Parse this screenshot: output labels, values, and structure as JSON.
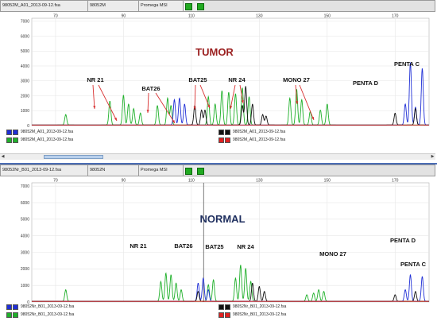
{
  "colors": {
    "blue": "#1f2fd6",
    "green": "#1fb02a",
    "black": "#111111",
    "red": "#e02020",
    "tumor_label": "#9b2020",
    "normal_label": "#1f2f5f",
    "annotation": "#111111",
    "arrow": "#d83030"
  },
  "icons": [
    "green-square-icon",
    "green-square-icon"
  ],
  "panels": [
    {
      "header": {
        "file": "98052M_A01_2013-09-12.fsa",
        "sample": "98052M",
        "kit": "Promega MSI"
      },
      "label": "TUMOR",
      "legend": [
        {
          "text": "98052M_A01_2013-09-12.fsa",
          "c1": "#1f2fd6",
          "c2": "#1f2fd6"
        },
        {
          "text": "98052M_A01_2013-09-12.fsa",
          "c1": "#1fb02a",
          "c2": "#1fb02a"
        },
        {
          "text": "98052M_A01_2013-09-12.fsa",
          "c1": "#111111",
          "c2": "#111111"
        },
        {
          "text": "98052M_A01_2013-09-12.fsa",
          "c1": "#e02020",
          "c2": "#e02020"
        }
      ],
      "markers": [
        "NR 21",
        "BAT26",
        "BAT25",
        "NR 24",
        "MONO 27",
        "PENTA D",
        "PENTA C"
      ]
    },
    {
      "header": {
        "file": "98052Nr_B01_2013-09-12.fsa",
        "sample": "98052N",
        "kit": "Promega MSI"
      },
      "label": "NORMAL",
      "legend": [
        {
          "text": "98052Nr_B01_2013-09-12.fsa",
          "c1": "#1f2fd6",
          "c2": "#1f2fd6"
        },
        {
          "text": "98052Nr_B01_2013-09-12.fsa",
          "c1": "#1fb02a",
          "c2": "#1fb02a"
        },
        {
          "text": "98052Nr_B01_2013-09-12.fsa",
          "c1": "#111111",
          "c2": "#111111"
        },
        {
          "text": "98052Nr_B01_2013-09-12.fsa",
          "c1": "#e02020",
          "c2": "#e02020"
        }
      ],
      "markers": [
        "NR 21",
        "BAT26",
        "BAT25",
        "NR 24",
        "MONO 27",
        "PENTA D",
        "PENTA C"
      ]
    }
  ],
  "chart_data": [
    {
      "type": "line",
      "title": "TUMOR",
      "xlabel": "",
      "ylabel": "",
      "x_ticks": [
        70,
        90,
        110,
        130,
        150,
        170
      ],
      "y_ticks": [
        0,
        1000,
        2000,
        3000,
        4000,
        5000,
        6000,
        7000
      ],
      "xlim": [
        63,
        180
      ],
      "ylim": [
        0,
        7200
      ],
      "grid": true,
      "series": [
        {
          "color": "#1fb02a",
          "peaks": [
            [
              73,
              700
            ],
            [
              86,
              1600
            ],
            [
              90,
              2000
            ],
            [
              91.5,
              1400
            ],
            [
              93,
              1100
            ],
            [
              95,
              800
            ],
            [
              100,
              1300
            ],
            [
              103,
              1800
            ],
            [
              104,
              1300
            ],
            [
              115,
              1900
            ],
            [
              117,
              1400
            ],
            [
              119,
              2300
            ],
            [
              121,
              2200
            ],
            [
              123,
              2100
            ],
            [
              125,
              2500
            ],
            [
              127,
              1900
            ],
            [
              139,
              1800
            ],
            [
              141,
              2400
            ],
            [
              142.5,
              1700
            ],
            [
              145,
              900
            ],
            [
              148,
              1000
            ],
            [
              150,
              1400
            ]
          ]
        },
        {
          "color": "#1f2fd6",
          "peaks": [
            [
              105,
              1700
            ],
            [
              106.5,
              1800
            ],
            [
              108,
              1400
            ],
            [
              173,
              1400
            ],
            [
              174.5,
              4200
            ],
            [
              176,
              1200
            ],
            [
              178,
              3800
            ]
          ]
        },
        {
          "color": "#111111",
          "peaks": [
            [
              111,
              1300
            ],
            [
              113,
              1000
            ],
            [
              114,
              1000
            ],
            [
              125,
              1300
            ],
            [
              126,
              2600
            ],
            [
              128,
              1400
            ],
            [
              131,
              700
            ],
            [
              132,
              600
            ],
            [
              170,
              800
            ],
            [
              176,
              1100
            ]
          ]
        },
        {
          "color": "#e02020",
          "peaks": []
        }
      ],
      "annotations": [
        "TUMOR",
        "NR 21",
        "BAT26",
        "BAT25",
        "NR 24",
        "MONO 27",
        "PENTA D",
        "PENTA C"
      ]
    },
    {
      "type": "line",
      "title": "NORMAL",
      "xlabel": "",
      "ylabel": "",
      "x_ticks": [
        70,
        90,
        110,
        130,
        150,
        170
      ],
      "y_ticks": [
        0,
        1000,
        2000,
        3000,
        4000,
        5000,
        6000,
        7000
      ],
      "xlim": [
        63,
        180
      ],
      "ylim": [
        0,
        7200
      ],
      "grid": true,
      "series": [
        {
          "color": "#1fb02a",
          "peaks": [
            [
              73,
              700
            ],
            [
              101,
              1200
            ],
            [
              102.5,
              1700
            ],
            [
              104,
              1600
            ],
            [
              105.5,
              1100
            ],
            [
              107,
              700
            ],
            [
              115,
              1000
            ],
            [
              116.5,
              1300
            ],
            [
              123,
              1400
            ],
            [
              124.5,
              2200
            ],
            [
              126,
              2000
            ],
            [
              127.5,
              1200
            ],
            [
              144,
              400
            ],
            [
              146,
              500
            ],
            [
              147.5,
              700
            ],
            [
              149,
              600
            ]
          ]
        },
        {
          "color": "#1f2fd6",
          "peaks": [
            [
              112,
              1100
            ],
            [
              113.5,
              1400
            ],
            [
              115,
              700
            ],
            [
              173,
              700
            ],
            [
              174.5,
              1600
            ],
            [
              178,
              1500
            ]
          ]
        },
        {
          "color": "#111111",
          "peaks": [
            [
              112,
              600
            ],
            [
              128,
              1100
            ],
            [
              130,
              900
            ],
            [
              131.5,
              600
            ],
            [
              170,
              400
            ],
            [
              176,
              600
            ]
          ]
        },
        {
          "color": "#e02020",
          "peaks": []
        }
      ],
      "annotations": [
        "NORMAL",
        "NR 21",
        "BAT26",
        "BAT25",
        "NR 24",
        "MONO 27",
        "PENTA D",
        "PENTA C"
      ]
    }
  ]
}
